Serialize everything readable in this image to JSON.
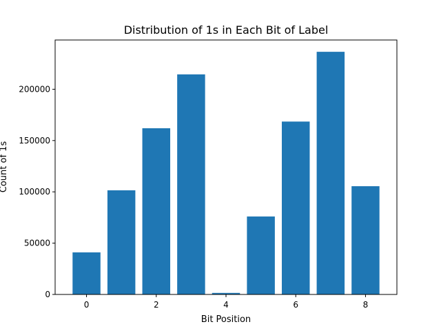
{
  "chart_data": {
    "type": "bar",
    "title": "Distribution of 1s in Each Bit of Label",
    "xlabel": "Bit Position",
    "ylabel": "Count of 1s",
    "categories": [
      0,
      1,
      2,
      3,
      4,
      5,
      6,
      7,
      8
    ],
    "values": [
      41000,
      101500,
      162000,
      214500,
      1500,
      76000,
      168500,
      236500,
      105500
    ],
    "xlim": [
      -0.9,
      8.9
    ],
    "ylim": [
      0,
      248000
    ],
    "xticks": [
      0,
      2,
      4,
      6,
      8
    ],
    "yticks": [
      0,
      50000,
      100000,
      150000,
      200000
    ],
    "bar_color": "#1f77b4",
    "grid": false,
    "legend": "none"
  }
}
